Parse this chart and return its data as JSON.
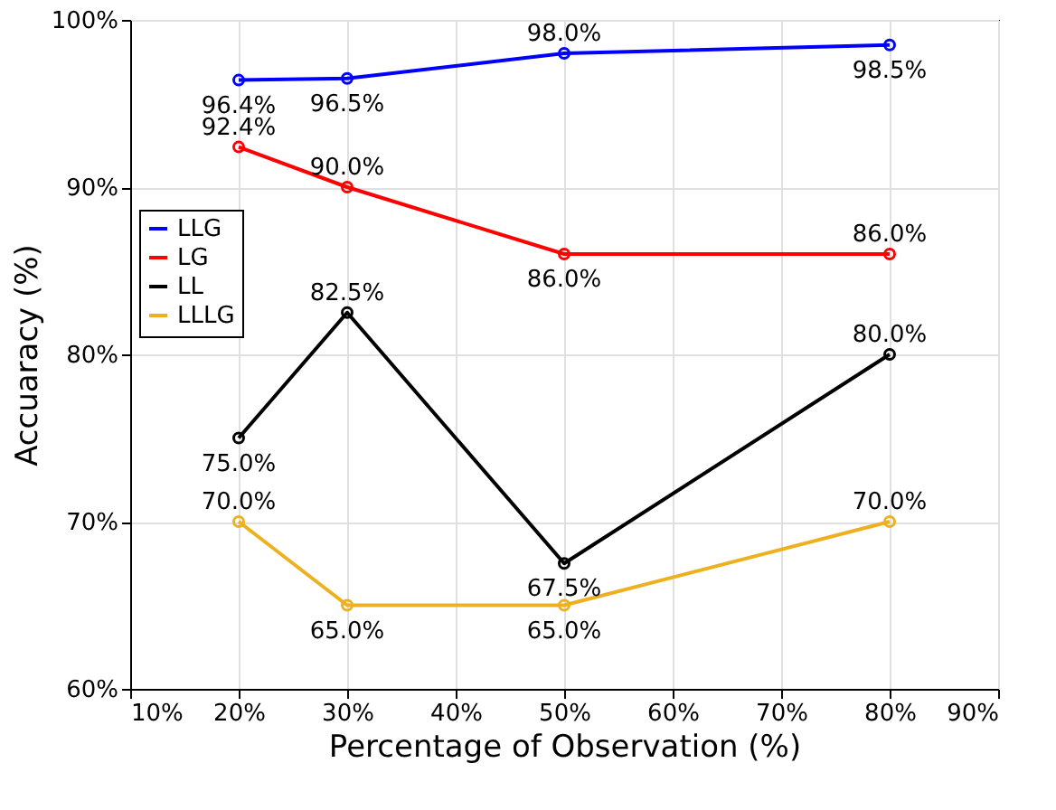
{
  "chart_data": {
    "type": "line",
    "xlabel": "Percentage of Observation (%)",
    "ylabel": "Accuaracy (%)",
    "x": [
      20,
      30,
      50,
      80
    ],
    "series": [
      {
        "name": "LLG",
        "color": "#0000ff",
        "values": [
          96.4,
          96.5,
          98.0,
          98.5
        ],
        "value_labels": [
          "96.4%",
          "96.5%",
          "98.0%",
          "98.5%"
        ]
      },
      {
        "name": "LG",
        "color": "#ff0000",
        "values": [
          92.4,
          90.0,
          86.0,
          86.0
        ],
        "value_labels": [
          "92.4%",
          "90.0%",
          "86.0%",
          "86.0%"
        ]
      },
      {
        "name": "LL",
        "color": "#000000",
        "values": [
          75.0,
          82.5,
          67.5,
          80.0
        ],
        "value_labels": [
          "75.0%",
          "82.5%",
          "67.5%",
          "80.0%"
        ]
      },
      {
        "name": "LLLG",
        "color": "#edb120",
        "values": [
          70.0,
          65.0,
          65.0,
          70.0
        ],
        "value_labels": [
          "70.0%",
          "65.0%",
          "65.0%",
          "70.0%"
        ]
      }
    ],
    "xlim": [
      10,
      90
    ],
    "xticks": [
      {
        "value": 10,
        "label": "10%"
      },
      {
        "value": 20,
        "label": "20%"
      },
      {
        "value": 30,
        "label": "30%"
      },
      {
        "value": 40,
        "label": "40%"
      },
      {
        "value": 50,
        "label": "50%"
      },
      {
        "value": 60,
        "label": "60%"
      },
      {
        "value": 70,
        "label": "70%"
      },
      {
        "value": 80,
        "label": "80%"
      },
      {
        "value": 90,
        "label": "90%"
      }
    ],
    "ylim": [
      60,
      100
    ],
    "yticks": [
      {
        "value": 60,
        "label": "60%"
      },
      {
        "value": 70,
        "label": "70%"
      },
      {
        "value": 80,
        "label": "80%"
      },
      {
        "value": 90,
        "label": "90%"
      },
      {
        "value": 100,
        "label": "100%"
      }
    ],
    "grid": true,
    "legend": "top left",
    "marker": "circle",
    "line_style": "solid"
  }
}
